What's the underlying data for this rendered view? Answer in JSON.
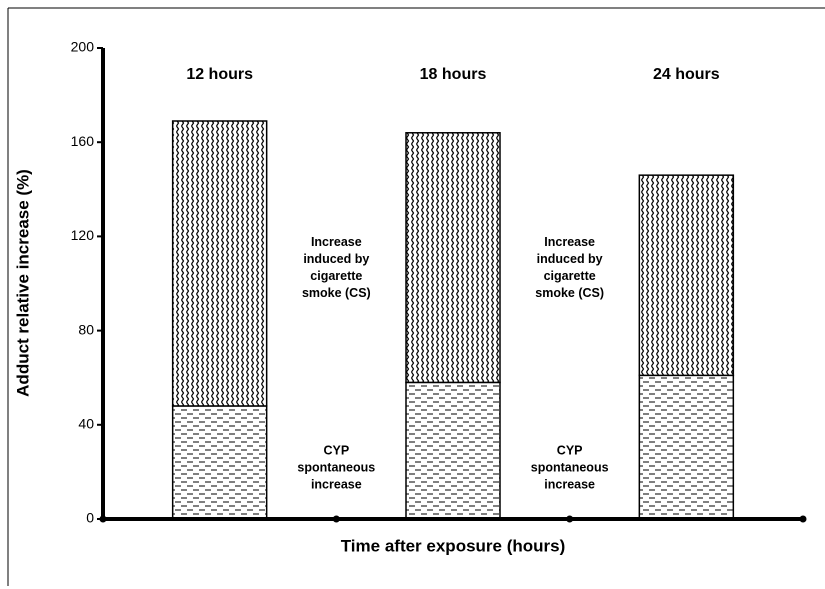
{
  "chart_data": {
    "type": "bar",
    "stacked": true,
    "xlabel": "Time after exposure (hours)",
    "ylabel": "Adduct relative increase (%)",
    "categories": [
      "12 hours",
      "18 hours",
      "24 hours"
    ],
    "series": [
      {
        "name": "CYP spontaneous increase",
        "pattern": "dash",
        "values": [
          48,
          58,
          61
        ]
      },
      {
        "name": "Increase induced by cigarette smoke (CS)",
        "pattern": "wave",
        "values": [
          121,
          106,
          85
        ]
      }
    ],
    "ylim": [
      0,
      200
    ],
    "yticks": [
      0,
      40,
      80,
      120,
      160,
      200
    ]
  }
}
